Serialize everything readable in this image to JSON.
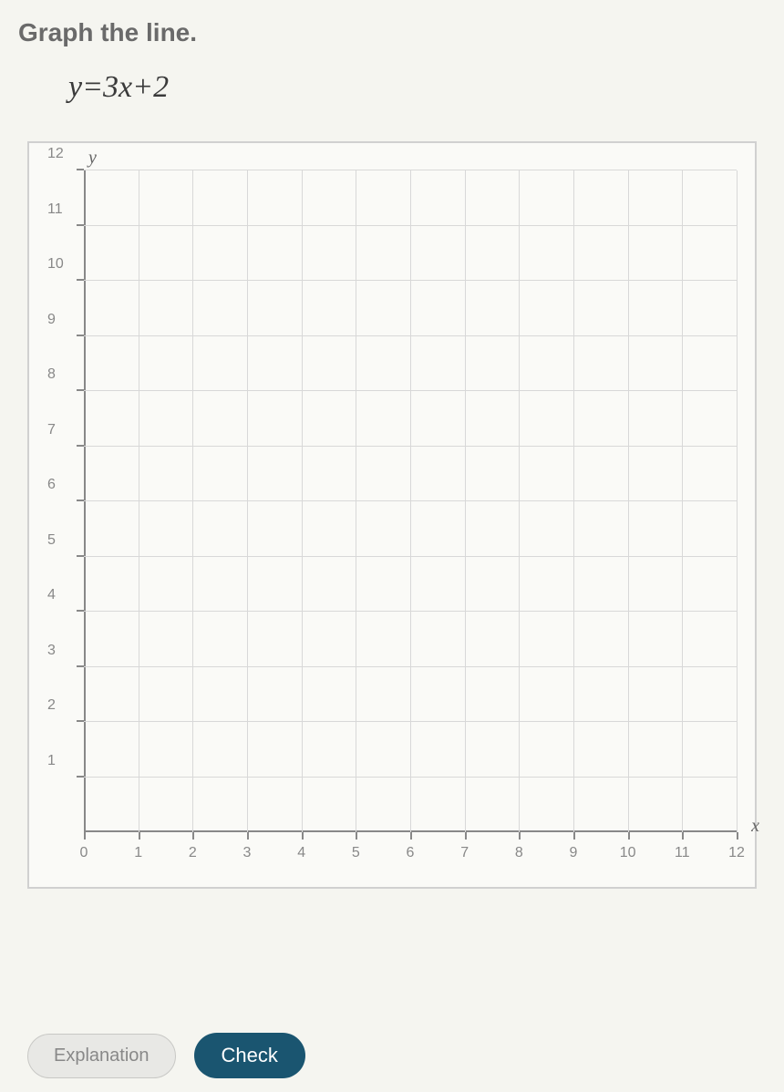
{
  "prompt": "Graph the line.",
  "equation": "y=3x+2",
  "chart": {
    "type": "line",
    "background_color": "#fafaf7",
    "grid_color": "#d8d8d8",
    "axis_color": "#888888",
    "xlabel": "x",
    "ylabel": "y",
    "xlim": [
      0,
      12
    ],
    "ylim": [
      0,
      12
    ],
    "xtick_step": 1,
    "ytick_step": 1,
    "x_ticks": [
      "0",
      "1",
      "2",
      "3",
      "4",
      "5",
      "6",
      "7",
      "8",
      "9",
      "10",
      "11",
      "12"
    ],
    "y_ticks": [
      "1",
      "2",
      "3",
      "4",
      "5",
      "6",
      "7",
      "8",
      "9",
      "10",
      "11",
      "12"
    ],
    "label_fontsize": 16,
    "label_color": "#888888",
    "series": []
  },
  "buttons": {
    "explanation": "Explanation",
    "check": "Check"
  }
}
